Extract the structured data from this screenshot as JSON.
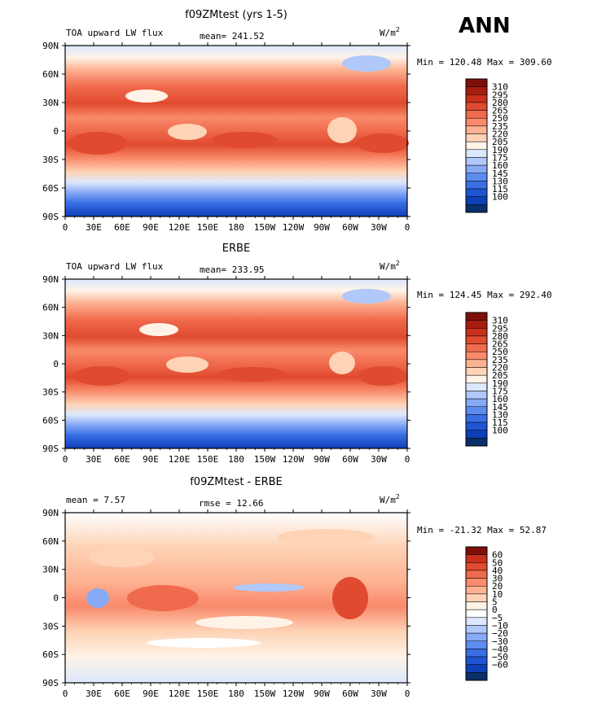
{
  "season": "ANN",
  "colors": {
    "seq": [
      "#08306b",
      "#0d3fb8",
      "#1f54d4",
      "#3a6fe4",
      "#5c8cf0",
      "#87aaf6",
      "#b0c8fa",
      "#dce8fd",
      "#fff3e8",
      "#fed3b6",
      "#fdb393",
      "#f98a6b",
      "#f06a4d",
      "#e04a2e",
      "#c92f1a",
      "#a61d10",
      "#800f0a"
    ],
    "diff": [
      "#08306b",
      "#0d3fb8",
      "#1f54d4",
      "#3a6fe4",
      "#5c8cf0",
      "#87aaf6",
      "#b0c8fa",
      "#dce8fd",
      "#ffffff",
      "#fff3e8",
      "#fed3b6",
      "#fdb393",
      "#f98a6b",
      "#f06a4d",
      "#e04a2e",
      "#c92f1a",
      "#800f0a"
    ]
  },
  "chart_data": [
    {
      "type": "heatmap",
      "title": "f09ZMtest (yrs 1-5)",
      "variable": "TOA upward LW flux",
      "stat_text": "mean= 241.52",
      "units": "W/m",
      "units_exp": "2",
      "minmax_text": "Min = 120.48 Max = 309.60",
      "x_ticks": [
        "0",
        "30E",
        "60E",
        "90E",
        "120E",
        "150E",
        "180",
        "150W",
        "120W",
        "90W",
        "60W",
        "30W",
        "0"
      ],
      "y_ticks": [
        "90N",
        "60N",
        "30N",
        "0",
        "30S",
        "60S",
        "90S"
      ],
      "xlim": [
        0,
        360
      ],
      "ylim": [
        -90,
        90
      ],
      "levels": [
        "310",
        "295",
        "280",
        "265",
        "250",
        "235",
        "220",
        "205",
        "190",
        "175",
        "160",
        "145",
        "130",
        "115",
        "100"
      ],
      "palette": "seq"
    },
    {
      "type": "heatmap",
      "title": "ERBE",
      "variable": "TOA upward LW flux",
      "stat_text": "mean= 233.95",
      "units": "W/m",
      "units_exp": "2",
      "minmax_text": "Min = 124.45 Max = 292.40",
      "x_ticks": [
        "0",
        "30E",
        "60E",
        "90E",
        "120E",
        "150E",
        "180",
        "150W",
        "120W",
        "90W",
        "60W",
        "30W",
        "0"
      ],
      "y_ticks": [
        "90N",
        "60N",
        "30N",
        "0",
        "30S",
        "60S",
        "90S"
      ],
      "xlim": [
        0,
        360
      ],
      "ylim": [
        -90,
        90
      ],
      "levels": [
        "310",
        "295",
        "280",
        "265",
        "250",
        "235",
        "220",
        "205",
        "190",
        "175",
        "160",
        "145",
        "130",
        "115",
        "100"
      ],
      "palette": "seq"
    },
    {
      "type": "heatmap",
      "title": "f09ZMtest - ERBE",
      "variable": "mean =   7.57",
      "stat_text": "rmse =  12.66",
      "units": "W/m",
      "units_exp": "2",
      "minmax_text": "Min = -21.32 Max =  52.87",
      "x_ticks": [
        "0",
        "30E",
        "60E",
        "90E",
        "120E",
        "150E",
        "180",
        "150W",
        "120W",
        "90W",
        "60W",
        "30W",
        "0"
      ],
      "y_ticks": [
        "90N",
        "60N",
        "30N",
        "0",
        "30S",
        "60S",
        "90S"
      ],
      "xlim": [
        0,
        360
      ],
      "ylim": [
        -90,
        90
      ],
      "levels": [
        "60",
        "50",
        "40",
        "30",
        "20",
        "10",
        "5",
        "0",
        "−5",
        "−10",
        "−20",
        "−30",
        "−40",
        "−50",
        "−60"
      ],
      "palette": "diff"
    }
  ]
}
